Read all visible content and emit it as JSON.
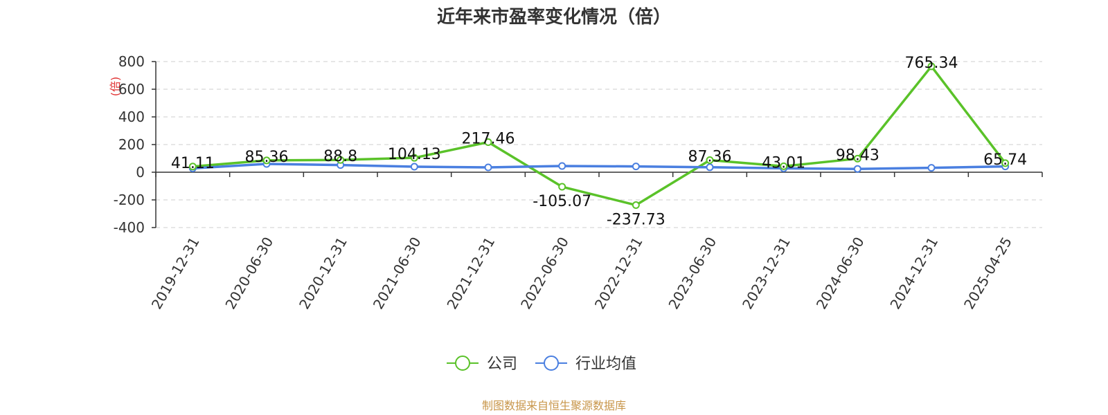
{
  "chart_data": {
    "type": "line",
    "title": "近年来市盈率变化情况（倍）",
    "ylabel": "(倍)",
    "categories": [
      "2019-12-31",
      "2020-06-30",
      "2020-12-31",
      "2021-06-30",
      "2021-12-31",
      "2022-06-30",
      "2022-12-31",
      "2023-06-30",
      "2023-12-31",
      "2024-06-30",
      "2024-12-31",
      "2025-04-25"
    ],
    "yticks": [
      -400,
      -200,
      0,
      200,
      400,
      600,
      800
    ],
    "ylim": [
      -400,
      800
    ],
    "grid": true,
    "legend_position": "bottom-center",
    "series": [
      {
        "name": "公司",
        "color": "#5ac229",
        "values": [
          41.11,
          85.36,
          88.8,
          104.13,
          217.46,
          -105.07,
          -237.73,
          87.36,
          43.01,
          98.43,
          765.34,
          65.74
        ],
        "labels": [
          "41.11",
          "85.36",
          "88.8",
          "104.13",
          "217.46",
          "-105.07",
          "-237.73",
          "87.36",
          "43.01",
          "98.43",
          "765.34",
          "65.74"
        ]
      },
      {
        "name": "行业均值",
        "color": "#4a7fe0",
        "values": [
          28,
          60,
          52,
          40,
          35,
          45,
          42,
          36,
          28,
          24,
          32,
          42
        ]
      }
    ],
    "source": "制图数据来自恒生聚源数据库",
    "source_color": "#c8964a",
    "ylabel_color": "#e03030"
  }
}
